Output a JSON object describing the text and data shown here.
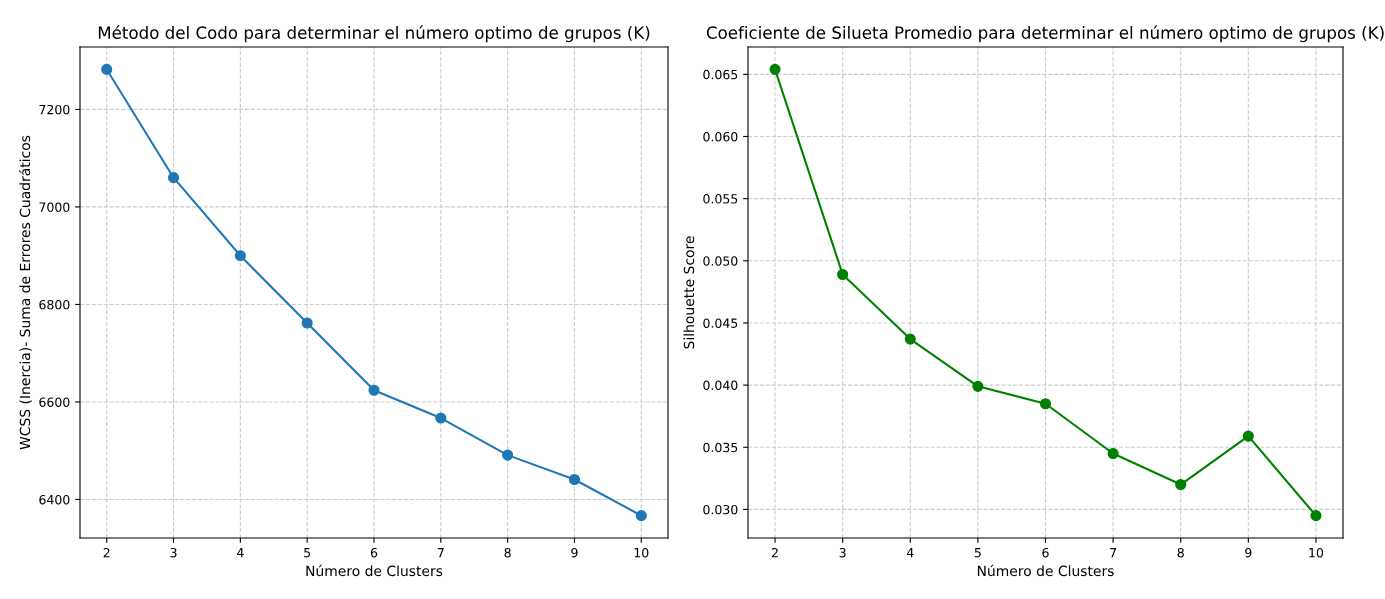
{
  "chart_data": [
    {
      "type": "line",
      "title": "Método del Codo para determinar el número optimo de grupos (K)",
      "xlabel": "Número de Clusters",
      "ylabel": "WCSS (Inercia)- Suma de Errores Cuadráticos",
      "x": [
        2,
        3,
        4,
        5,
        6,
        7,
        8,
        9,
        10
      ],
      "series": [
        {
          "color": "#1f77b4",
          "values": [
            7282,
            7060,
            6900,
            6762,
            6624,
            6567,
            6491,
            6441,
            6367
          ]
        }
      ],
      "xlim": [
        1.6,
        10.4
      ],
      "xticks": [
        2,
        3,
        4,
        5,
        6,
        7,
        8,
        9,
        10
      ],
      "ylim": [
        6321,
        7328
      ],
      "yticks": [
        6400,
        6600,
        6800,
        7000,
        7200
      ],
      "grid": true,
      "marker": "circle",
      "line_style": "solid"
    },
    {
      "type": "line",
      "title": "Coeficiente de Silueta Promedio para determinar el número optimo de grupos (K)",
      "xlabel": "Número de Clusters",
      "ylabel": "Silhouette Score",
      "x": [
        2,
        3,
        4,
        5,
        6,
        7,
        8,
        9,
        10
      ],
      "series": [
        {
          "color": "#008000",
          "values": [
            0.0654,
            0.0489,
            0.0437,
            0.0399,
            0.0385,
            0.0345,
            0.032,
            0.0359,
            0.0295
          ]
        }
      ],
      "xlim": [
        1.6,
        10.4
      ],
      "xticks": [
        2,
        3,
        4,
        5,
        6,
        7,
        8,
        9,
        10
      ],
      "ylim": [
        0.0277,
        0.0672
      ],
      "yticks": [
        {
          "value": 0.03,
          "label": "0.030"
        },
        {
          "value": 0.035,
          "label": "0.035"
        },
        {
          "value": 0.04,
          "label": "0.040"
        },
        {
          "value": 0.045,
          "label": "0.045"
        },
        {
          "value": 0.05,
          "label": "0.050"
        },
        {
          "value": 0.055,
          "label": "0.055"
        },
        {
          "value": 0.06,
          "label": "0.060"
        },
        {
          "value": 0.065,
          "label": "0.065"
        }
      ],
      "grid": true,
      "marker": "circle",
      "line_style": "solid"
    }
  ]
}
